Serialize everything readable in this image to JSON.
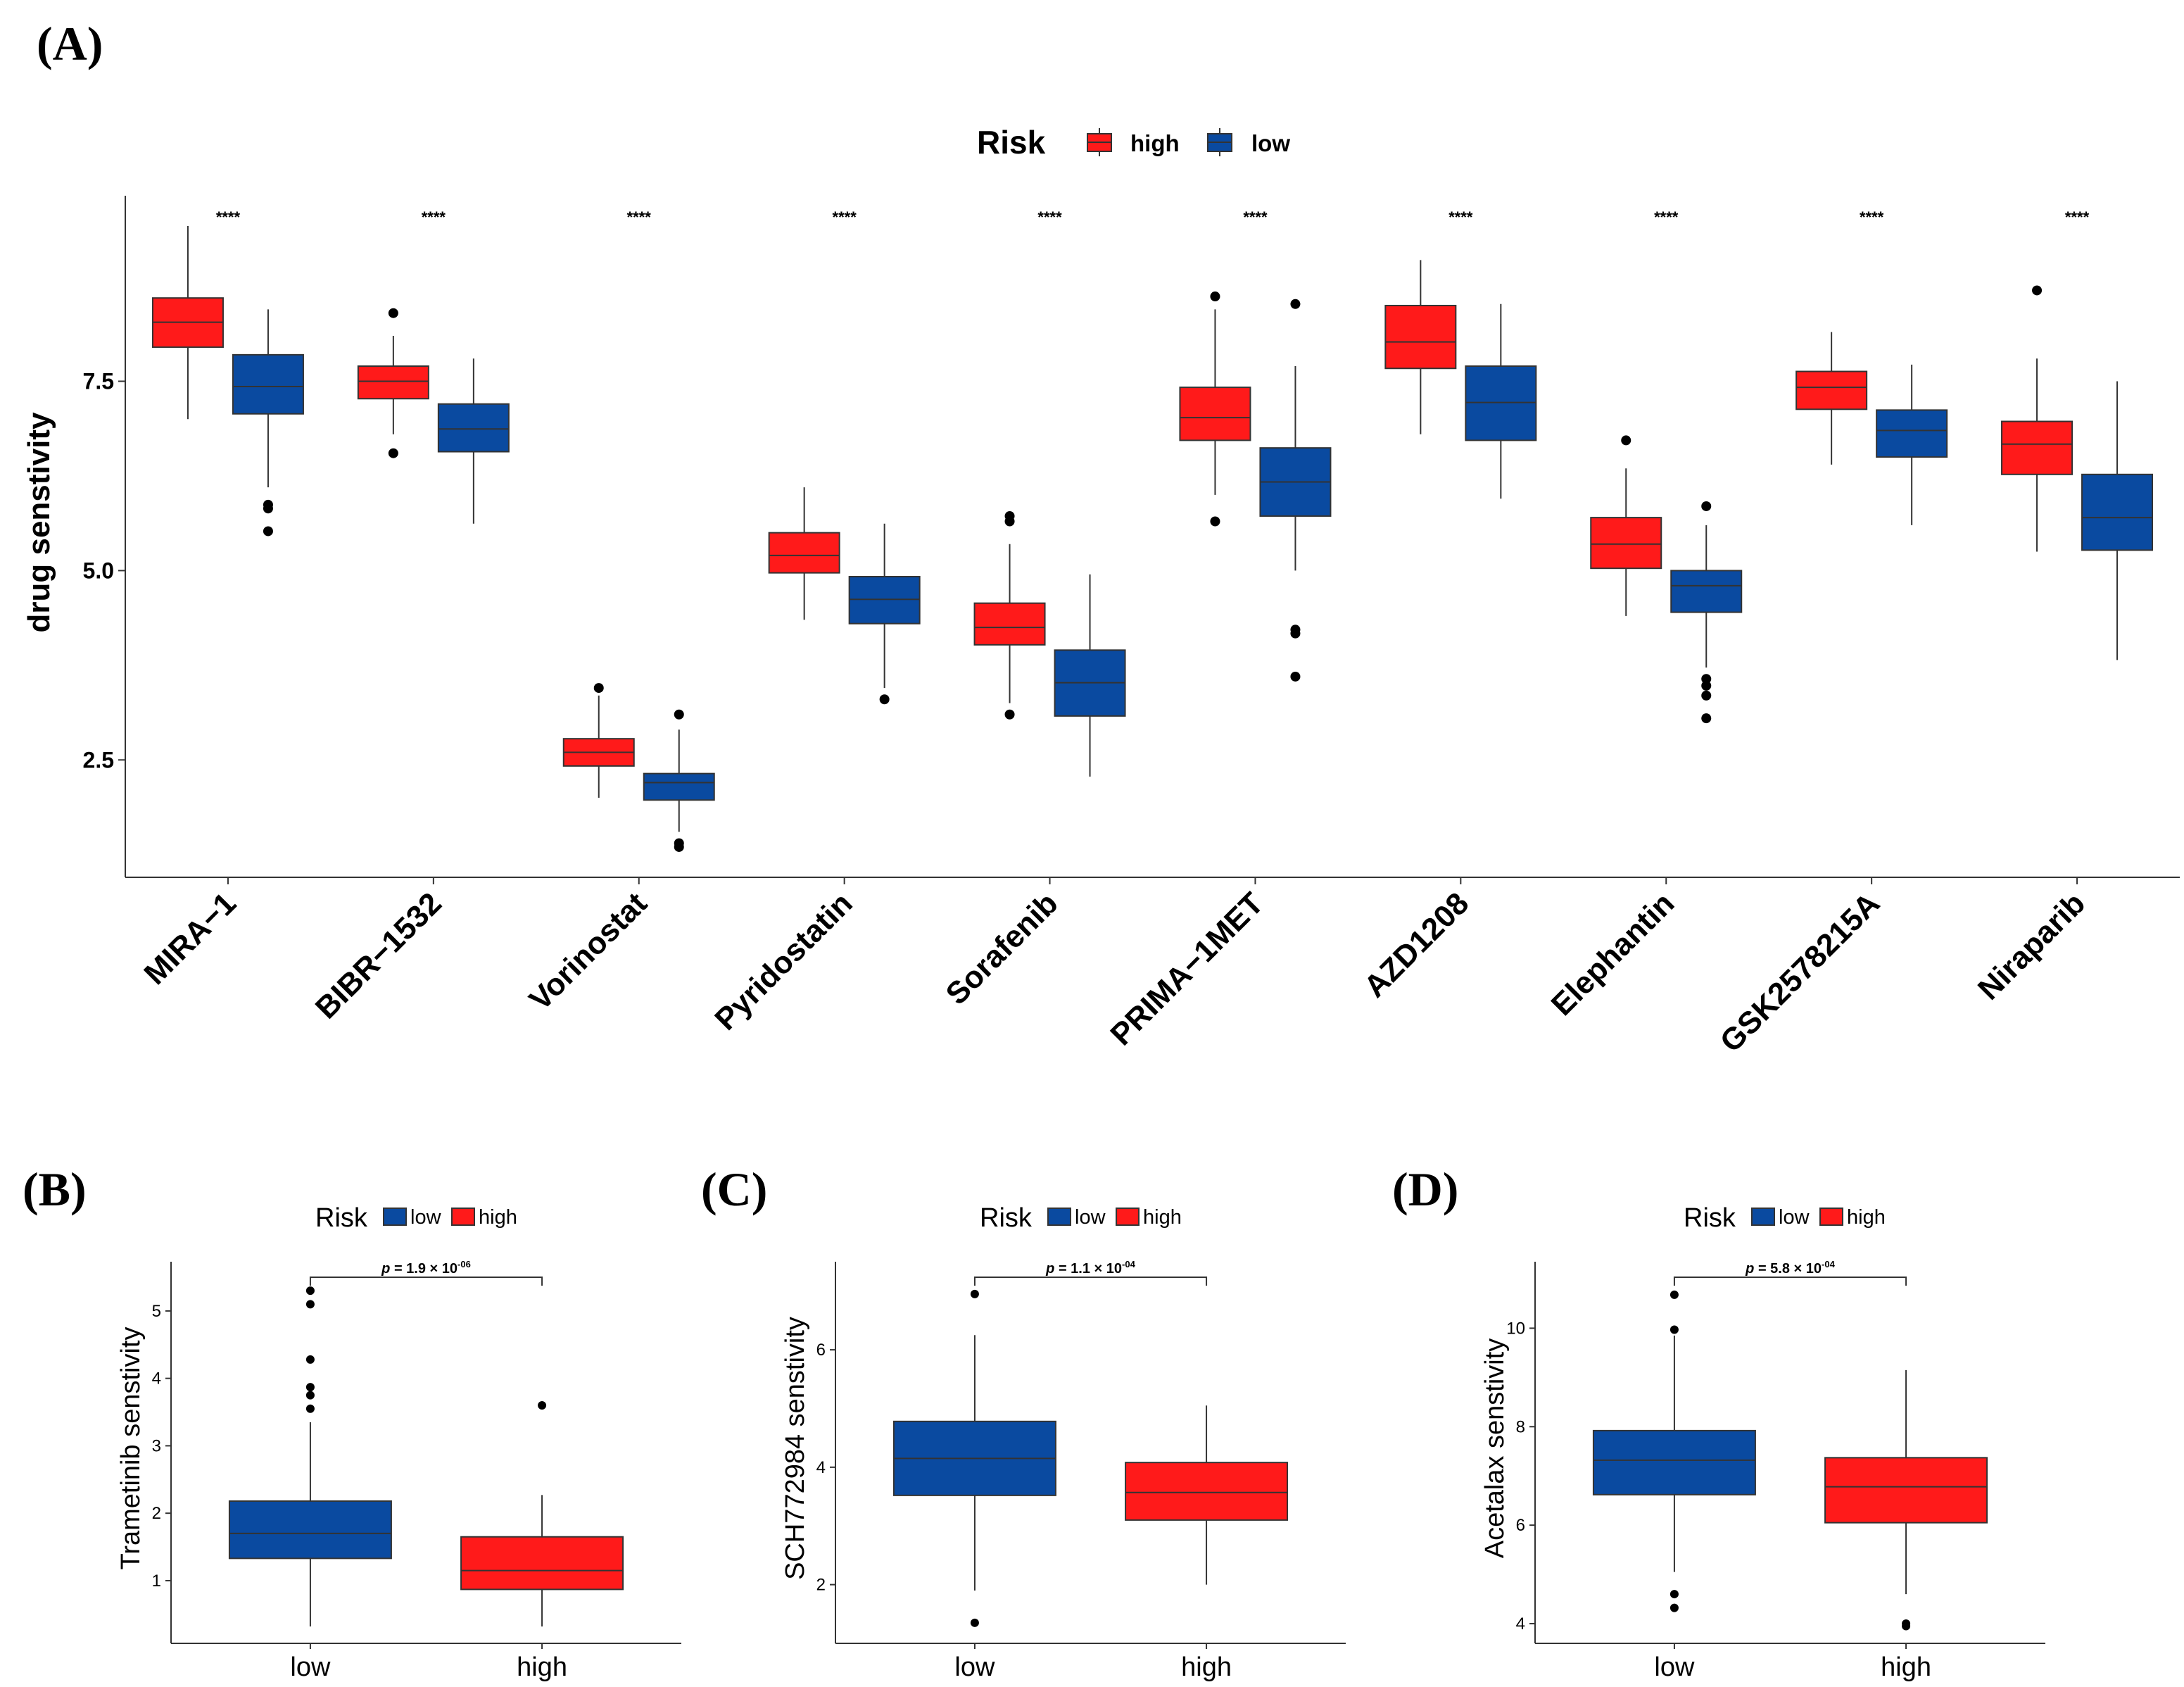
{
  "colors": {
    "high": "#ff1a1a",
    "low": "#0a4aa0",
    "axis": "#333333"
  },
  "chart_data": [
    {
      "panel": "(A)",
      "type": "boxplot",
      "ylabel": "drug senstivity",
      "ylim": [
        0.95,
        9.95
      ],
      "yticks": [
        2.5,
        5.0,
        7.5
      ],
      "ytick_labels": [
        "2.5",
        "5.0",
        "7.5"
      ],
      "legend": {
        "title": "Risk",
        "entries": [
          "high",
          "low"
        ],
        "position": "top"
      },
      "categories": [
        "MIRA−1",
        "BIBR−1532",
        "Vorinostat",
        "Pyridostatin",
        "Sorafenib",
        "PRIMA−1MET",
        "AZD1208",
        "Elephantin",
        "GSK2578215A",
        "Niraparib"
      ],
      "significance": [
        "****",
        "****",
        "****",
        "****",
        "****",
        "****",
        "****",
        "****",
        "****",
        "****"
      ],
      "series": [
        {
          "name": "high",
          "boxes": [
            {
              "min": 7.0,
              "q1": 7.95,
              "median": 8.28,
              "q3": 8.6,
              "max": 9.55,
              "outliers": []
            },
            {
              "min": 6.8,
              "q1": 7.27,
              "median": 7.5,
              "q3": 7.7,
              "max": 8.1,
              "outliers": [
                8.4,
                6.55
              ]
            },
            {
              "min": 2.0,
              "q1": 2.42,
              "median": 2.6,
              "q3": 2.78,
              "max": 3.35,
              "outliers": [
                3.45
              ]
            },
            {
              "min": 4.35,
              "q1": 4.97,
              "median": 5.2,
              "q3": 5.5,
              "max": 6.1,
              "outliers": []
            },
            {
              "min": 3.25,
              "q1": 4.02,
              "median": 4.25,
              "q3": 4.57,
              "max": 5.35,
              "outliers": [
                5.72,
                5.65,
                3.1
              ]
            },
            {
              "min": 6.0,
              "q1": 6.72,
              "median": 7.02,
              "q3": 7.42,
              "max": 8.45,
              "outliers": [
                8.62,
                5.65
              ]
            },
            {
              "min": 6.8,
              "q1": 7.67,
              "median": 8.02,
              "q3": 8.5,
              "max": 9.1,
              "outliers": []
            },
            {
              "min": 4.4,
              "q1": 5.03,
              "median": 5.35,
              "q3": 5.7,
              "max": 6.35,
              "outliers": [
                6.72
              ]
            },
            {
              "min": 6.4,
              "q1": 7.13,
              "median": 7.42,
              "q3": 7.63,
              "max": 8.15,
              "outliers": []
            },
            {
              "min": 5.25,
              "q1": 6.27,
              "median": 6.67,
              "q3": 6.97,
              "max": 7.8,
              "outliers": [
                8.7
              ]
            }
          ]
        },
        {
          "name": "low",
          "boxes": [
            {
              "min": 6.1,
              "q1": 7.07,
              "median": 7.43,
              "q3": 7.85,
              "max": 8.45,
              "outliers": [
                5.87,
                5.82,
                5.52
              ]
            },
            {
              "min": 5.62,
              "q1": 6.57,
              "median": 6.87,
              "q3": 7.2,
              "max": 7.8,
              "outliers": []
            },
            {
              "min": 1.55,
              "q1": 1.97,
              "median": 2.2,
              "q3": 2.32,
              "max": 2.9,
              "outliers": [
                3.1,
                1.4,
                1.35
              ]
            },
            {
              "min": 3.45,
              "q1": 4.3,
              "median": 4.62,
              "q3": 4.92,
              "max": 5.62,
              "outliers": [
                3.3
              ]
            },
            {
              "min": 2.28,
              "q1": 3.08,
              "median": 3.52,
              "q3": 3.95,
              "max": 4.95,
              "outliers": []
            },
            {
              "min": 5.0,
              "q1": 5.72,
              "median": 6.17,
              "q3": 6.62,
              "max": 7.7,
              "outliers": [
                8.52,
                4.22,
                4.17,
                3.6
              ]
            },
            {
              "min": 5.95,
              "q1": 6.72,
              "median": 7.22,
              "q3": 7.7,
              "max": 8.52,
              "outliers": []
            },
            {
              "min": 3.72,
              "q1": 4.45,
              "median": 4.8,
              "q3": 5.0,
              "max": 5.6,
              "outliers": [
                5.85,
                3.57,
                3.48,
                3.35,
                3.05
              ]
            },
            {
              "min": 5.6,
              "q1": 6.5,
              "median": 6.85,
              "q3": 7.12,
              "max": 7.72,
              "outliers": []
            },
            {
              "min": 3.82,
              "q1": 5.27,
              "median": 5.7,
              "q3": 6.27,
              "max": 7.5,
              "outliers": []
            }
          ]
        }
      ]
    },
    {
      "panel": "(B)",
      "type": "boxplot",
      "ylabel": "Trametinib senstivity",
      "ylim": [
        0.07,
        5.73
      ],
      "yticks": [
        1,
        2,
        3,
        4,
        5
      ],
      "ytick_labels": [
        "1",
        "2",
        "3",
        "4",
        "5"
      ],
      "legend": {
        "title": "Risk",
        "entries": [
          "low",
          "high"
        ],
        "position": "top"
      },
      "categories": [
        "low",
        "high"
      ],
      "pvalue": {
        "prefix": "p",
        "mantissa": " = 1.9 × 10",
        "exponent": "-06"
      },
      "boxes": [
        {
          "group": "low",
          "min": 0.32,
          "q1": 1.33,
          "median": 1.7,
          "q3": 2.18,
          "max": 3.35,
          "outliers": [
            5.3,
            5.1,
            4.28,
            3.87,
            3.75,
            3.55
          ]
        },
        {
          "group": "high",
          "min": 0.32,
          "q1": 0.87,
          "median": 1.15,
          "q3": 1.65,
          "max": 2.27,
          "outliers": [
            3.6
          ]
        }
      ]
    },
    {
      "panel": "(C)",
      "type": "boxplot",
      "ylabel": "SCH772984 senstivity",
      "ylim": [
        1.0,
        7.5
      ],
      "yticks": [
        2,
        4,
        6
      ],
      "ytick_labels": [
        "2",
        "4",
        "6"
      ],
      "legend": {
        "title": "Risk",
        "entries": [
          "low",
          "high"
        ],
        "position": "top"
      },
      "categories": [
        "low",
        "high"
      ],
      "pvalue": {
        "prefix": "p",
        "mantissa": " = 1.1 × 10",
        "exponent": "-04"
      },
      "boxes": [
        {
          "group": "low",
          "min": 1.9,
          "q1": 3.52,
          "median": 4.15,
          "q3": 4.78,
          "max": 6.25,
          "outliers": [
            6.95,
            1.35
          ]
        },
        {
          "group": "high",
          "min": 2.0,
          "q1": 3.1,
          "median": 3.57,
          "q3": 4.08,
          "max": 5.05,
          "outliers": []
        }
      ]
    },
    {
      "panel": "(D)",
      "type": "boxplot",
      "ylabel": "Acetalax senstivity",
      "ylim": [
        3.6,
        11.35
      ],
      "yticks": [
        4,
        6,
        8,
        10
      ],
      "ytick_labels": [
        "4",
        "6",
        "8",
        "10"
      ],
      "legend": {
        "title": "Risk",
        "entries": [
          "low",
          "high"
        ],
        "position": "top"
      },
      "categories": [
        "low",
        "high"
      ],
      "pvalue": {
        "prefix": "p",
        "mantissa": " = 5.8 × 10",
        "exponent": "-04"
      },
      "boxes": [
        {
          "group": "low",
          "min": 5.05,
          "q1": 6.62,
          "median": 7.32,
          "q3": 7.92,
          "max": 9.85,
          "outliers": [
            10.68,
            9.97,
            4.6,
            4.32
          ]
        },
        {
          "group": "high",
          "min": 4.6,
          "q1": 6.05,
          "median": 6.78,
          "q3": 7.37,
          "max": 9.15,
          "outliers": [
            4.0,
            3.95
          ]
        }
      ]
    }
  ]
}
